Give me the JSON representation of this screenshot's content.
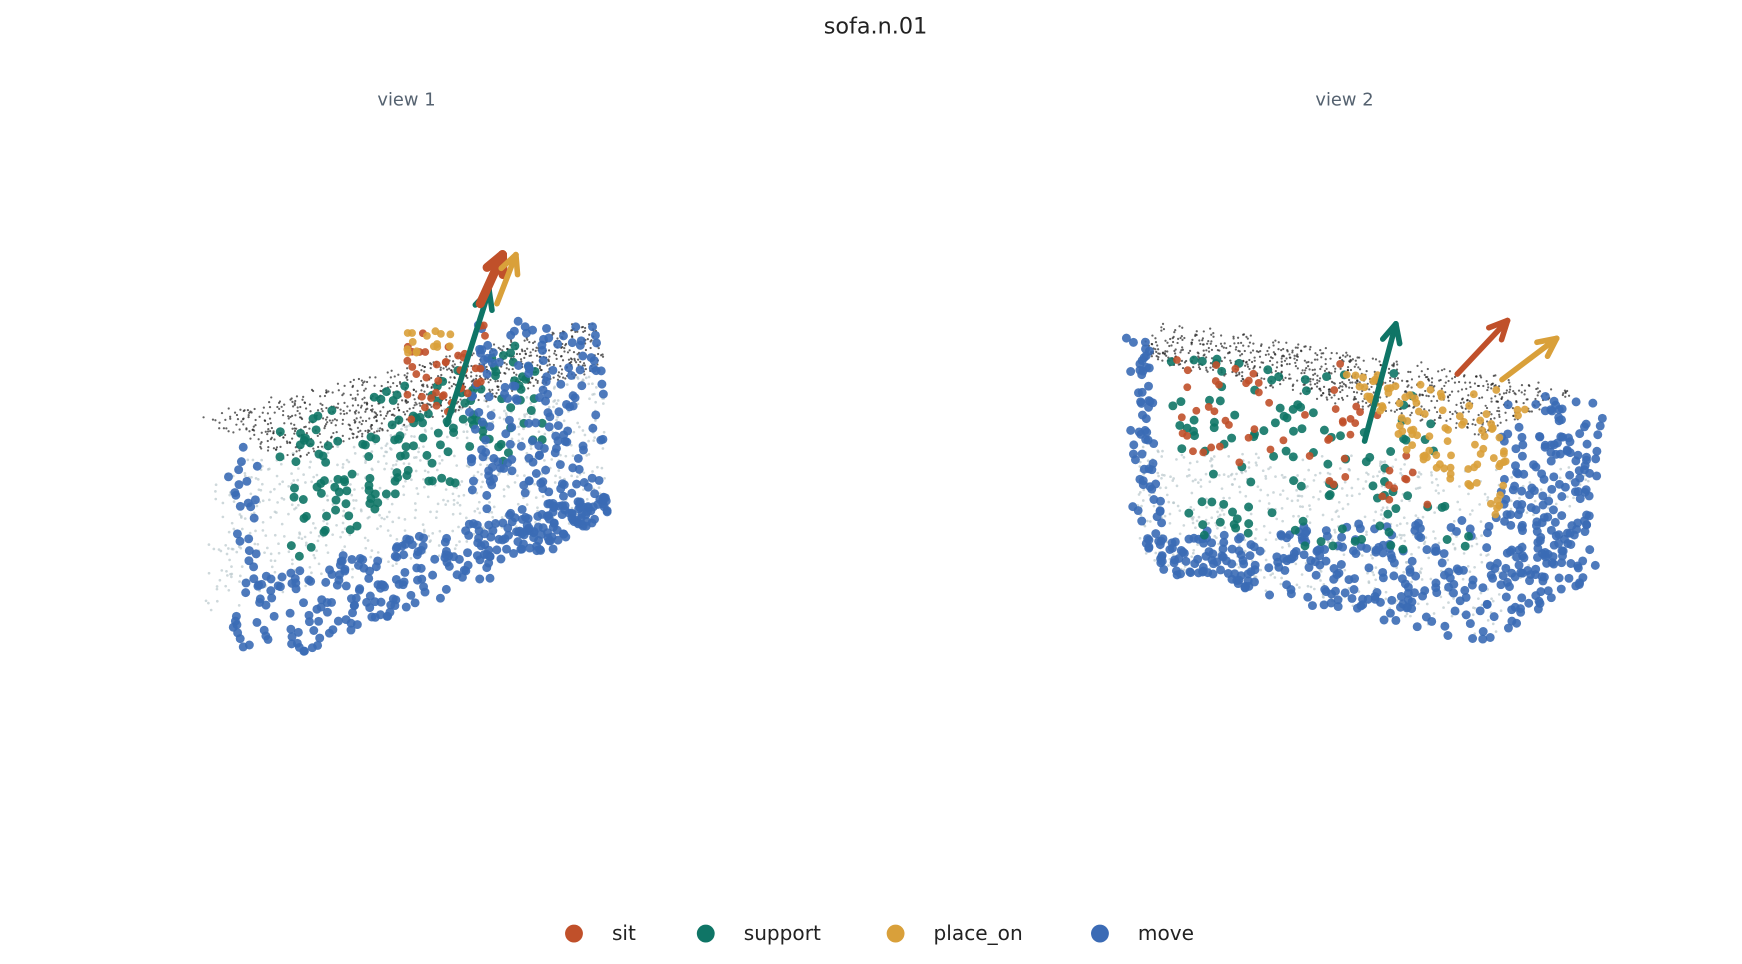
{
  "title": "sofa.n.01",
  "views": [
    {
      "title": "view 1"
    },
    {
      "title": "view 2"
    }
  ],
  "legend": [
    {
      "name": "sit",
      "color": "#c0502a"
    },
    {
      "name": "support",
      "color": "#0f7566"
    },
    {
      "name": "place_on",
      "color": "#d9a03a"
    },
    {
      "name": "move",
      "color": "#3b6bb5"
    }
  ]
}
